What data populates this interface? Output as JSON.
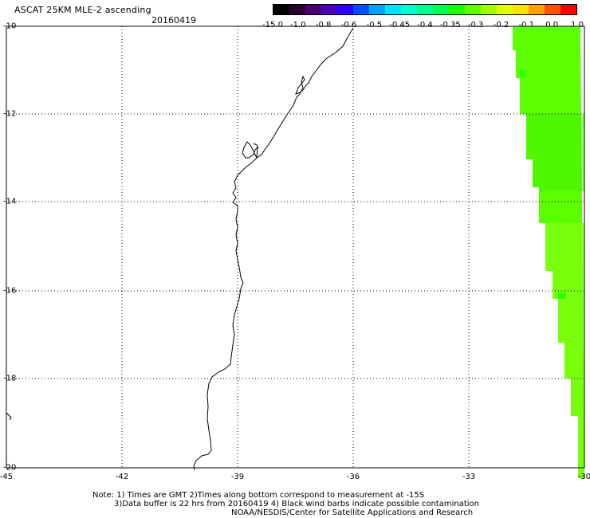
{
  "header": {
    "title": "ASCAT 25KM MLE-2 ascending",
    "date": "20160419"
  },
  "colorbar": {
    "colors": [
      "#000000",
      "#2a0030",
      "#4b006e",
      "#4b00b4",
      "#2a00ff",
      "#0050ff",
      "#00a0ff",
      "#00e0ff",
      "#00ffd0",
      "#00ff90",
      "#00ff50",
      "#20ff00",
      "#60ff00",
      "#a0ff00",
      "#e0ff00",
      "#ffe000",
      "#ffa000",
      "#ff5000",
      "#ff0000"
    ],
    "labels": [
      "-15.0",
      "-1.0",
      "-0.8",
      "-0.6",
      "-0.5",
      "-0.45",
      "-0.4",
      "-0.35",
      "-0.3",
      "-0.2",
      "-0.1",
      "0.0",
      "1.0"
    ]
  },
  "axes": {
    "x_labels": [
      "-45",
      "-42",
      "-39",
      "-36",
      "-33",
      "-30"
    ],
    "y_labels": [
      "-10",
      "-12",
      "-14",
      "-16",
      "-18",
      "-20"
    ]
  },
  "notes": {
    "line1": "Note: 1) Times are GMT 2)Times along bottom correspond to measurement at -15S",
    "line2": "3)Data buffer is 22 hrs from 20160419 4) Black wind barbs indicate possible contamination",
    "line3": "NOAA/NESDIS/Center for Satellite Applications and Research"
  },
  "swath": {
    "edge_color": "#50ff00",
    "core_color": "#66ff00",
    "tail_color": "#90ff10"
  }
}
